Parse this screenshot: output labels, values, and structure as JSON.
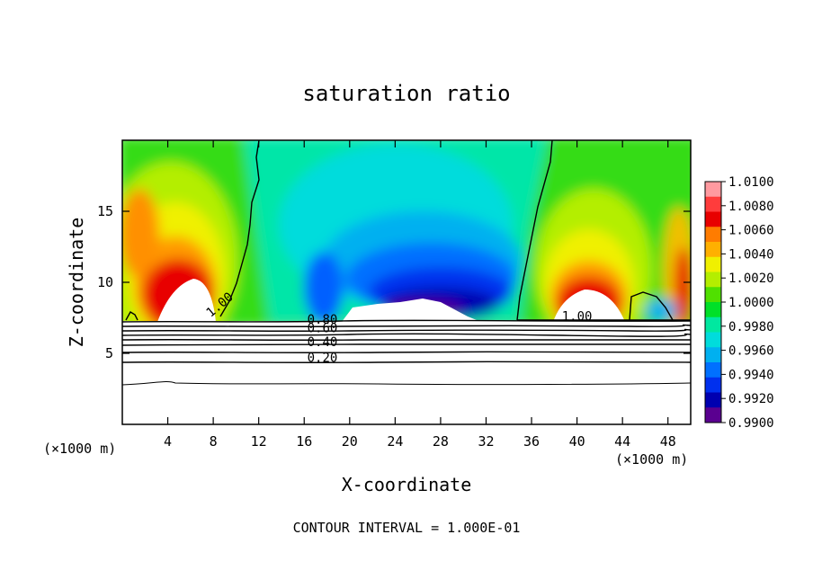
{
  "chart_data": {
    "type": "heatmap",
    "title": "saturation ratio",
    "xlabel": "X-coordinate",
    "ylabel": "Z-coordinate",
    "x_unit_left": "(×1000 m)",
    "x_unit_right": "(×1000 m)",
    "footer": "CONTOUR INTERVAL = 1.000E-01",
    "xlim": [
      0,
      50
    ],
    "ylim": [
      0,
      20
    ],
    "x_ticks": [
      4,
      8,
      12,
      16,
      20,
      24,
      28,
      32,
      36,
      40,
      44,
      48
    ],
    "y_ticks": [
      5,
      10,
      15
    ],
    "colorbar": {
      "min": 0.99,
      "max": 1.01,
      "labels": [
        "1.0100",
        "1.0080",
        "1.0060",
        "1.0040",
        "1.0020",
        "1.0000",
        "0.9980",
        "0.9960",
        "0.9940",
        "0.9920",
        "0.9900"
      ],
      "colors": [
        "#ff9aa0",
        "#ff3c3c",
        "#e80000",
        "#ff7c00",
        "#ffb000",
        "#f0f000",
        "#b4ee00",
        "#50e000",
        "#00e028",
        "#00e8a0",
        "#00dcdc",
        "#00b0f0",
        "#0070ff",
        "#0030ee",
        "#0000b0",
        "#5a0090"
      ]
    },
    "contour_labels": [
      {
        "text": "1.00",
        "x": 8.8,
        "y": 8.2
      },
      {
        "text": "1.00",
        "x": 40.0,
        "y": 7.3
      },
      {
        "text": "0.80",
        "x": 17.6,
        "y": 7.1
      },
      {
        "text": "0.60",
        "x": 17.6,
        "y": 6.5
      },
      {
        "text": "0.40",
        "x": 17.6,
        "y": 5.5
      },
      {
        "text": "0.20",
        "x": 17.6,
        "y": 4.4
      }
    ]
  }
}
